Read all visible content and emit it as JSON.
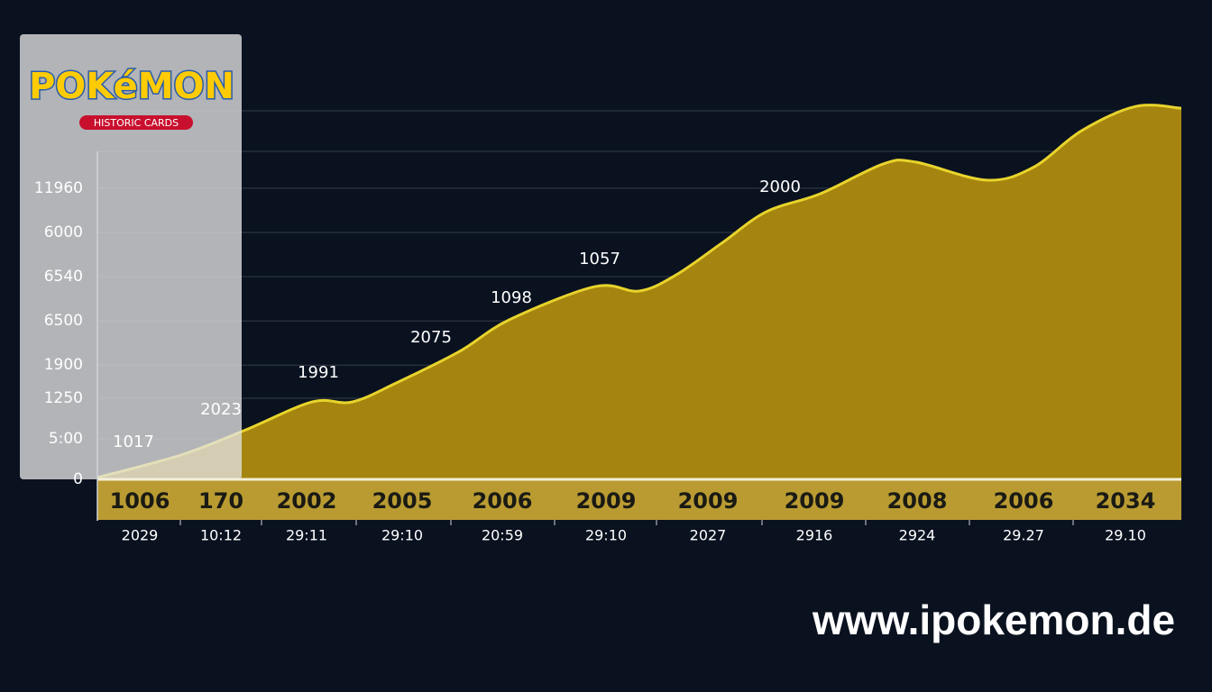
{
  "logo": {
    "title": "POKéMON",
    "subtitle": "HISTORIC CARDS"
  },
  "watermark": "www.ipokemon.de",
  "chart_data": {
    "type": "area",
    "x": [
      0,
      7.7,
      13.5,
      19.8,
      23.5,
      27.6,
      33.4,
      38,
      45.9,
      50,
      53.4,
      57.6,
      61.7,
      66.7,
      72.5,
      75.5,
      82,
      86.3,
      90.8,
      95.8,
      100
    ],
    "values": [
      0.5,
      6.6,
      13.2,
      21,
      21,
      26.2,
      34.7,
      43.3,
      52.3,
      51.1,
      55.5,
      64.1,
      72.6,
      77.5,
      85.6,
      86.1,
      81.2,
      84.6,
      94.6,
      101.2,
      100.7
    ],
    "xlim": [
      0,
      100
    ],
    "ylim": [
      0,
      105
    ],
    "yticks": [
      0,
      {
        "value": 11,
        "label": "5:00"
      },
      {
        "value": 22,
        "label": "1250"
      },
      {
        "value": 31,
        "label": "1900"
      },
      {
        "value": 43,
        "label": "6500"
      },
      {
        "value": 55,
        "label": "6540"
      },
      {
        "value": 67,
        "label": "6000"
      },
      {
        "value": 79,
        "label": "11960"
      }
    ],
    "gridlines": [
      89,
      100
    ],
    "color": "#a5850f",
    "line_color": "#e8d42c",
    "annotations": [
      "1017",
      "2023",
      "1991",
      "2075",
      "1098",
      "1057",
      "2000"
    ],
    "band_labels": [
      "1006",
      "170",
      "2002",
      "2005",
      "2006",
      "2009",
      "2009",
      "2009",
      "2008",
      "2006",
      "2034"
    ],
    "categories": [
      "2029",
      "10:12",
      "29:11",
      "29:10",
      "20:59",
      "29:10",
      "2027",
      "2916",
      "2924",
      "29.27",
      "29.10"
    ]
  }
}
